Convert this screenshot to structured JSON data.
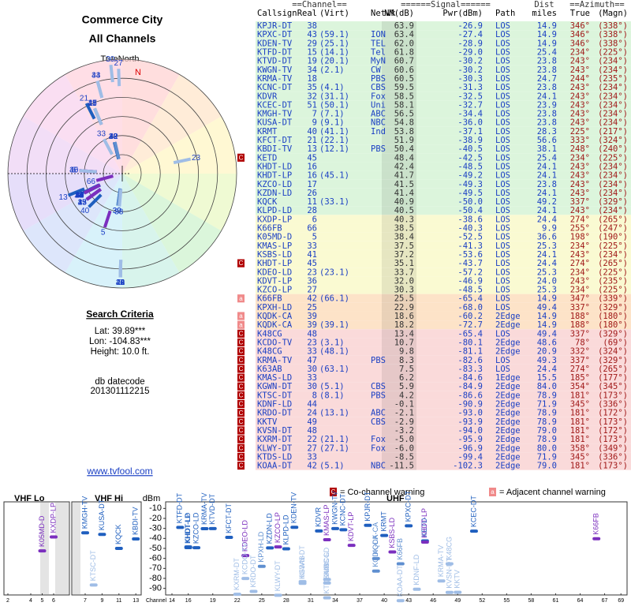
{
  "header": {
    "title": "Commerce City",
    "subtitle": "All Channels"
  },
  "polar": {
    "north_label": "TrueNorth",
    "n": "N"
  },
  "search": {
    "title": "Search Criteria",
    "lat": "Lat: 39.89***",
    "lon": "Lon: -104.83***",
    "height": "Height: 10.0 ft.",
    "datecode_label": "db datecode",
    "datecode": "201301112215",
    "site": "www.tvfool.com"
  },
  "legend": {
    "co_icon": "C",
    "co": "= Co-channel warning",
    "adj_icon": "a",
    "adj": "= Adjacent channel warning"
  },
  "table": {
    "group_headers": [
      "==Channel==",
      "======Signal======",
      "Dist",
      "==Azimuth=="
    ],
    "headers": [
      "Callsign",
      "Real",
      "(Virt)",
      "Netwk",
      "NM(dB)",
      "Pwr(dBm)",
      "Path",
      "miles",
      "True",
      "(Magn)"
    ],
    "rows": [
      {
        "cs": "KPJR-DT",
        "ch": "38",
        "nm": "63.9",
        "pwr": "-26.9",
        "path": "LOS",
        "dist": "14.9",
        "az": "346°",
        "mag": "(338°)",
        "bg": "#dcf5dc"
      },
      {
        "cs": "KPXC-DT",
        "ch": "43",
        "virt": "(59.1)",
        "net": "ION",
        "nm": "63.4",
        "pwr": "-27.4",
        "path": "LOS",
        "dist": "14.9",
        "az": "346°",
        "mag": "(338°)",
        "bg": "#dcf5dc"
      },
      {
        "cs": "KDEN-TV",
        "ch": "29",
        "virt": "(25.1)",
        "net": "TEL",
        "nm": "62.0",
        "pwr": "-28.9",
        "path": "LOS",
        "dist": "14.9",
        "az": "346°",
        "mag": "(338°)",
        "bg": "#dcf5dc"
      },
      {
        "cs": "KTFD-DT",
        "ch": "15",
        "virt": "(14.1)",
        "net": "Tel",
        "nm": "61.8",
        "pwr": "-29.0",
        "path": "LOS",
        "dist": "25.4",
        "az": "234°",
        "mag": "(225°)",
        "bg": "#dcf5dc"
      },
      {
        "cs": "KTVD-DT",
        "ch": "19",
        "virt": "(20.1)",
        "net": "MyN",
        "nm": "60.7",
        "pwr": "-30.2",
        "path": "LOS",
        "dist": "23.8",
        "az": "243°",
        "mag": "(234°)",
        "bg": "#dcf5dc"
      },
      {
        "cs": "KWGN-TV",
        "ch": "34",
        "virt": "(2.1)",
        "net": "CW",
        "nm": "60.6",
        "pwr": "-30.2",
        "path": "LOS",
        "dist": "23.8",
        "az": "243°",
        "mag": "(234°)",
        "bg": "#dcf5dc"
      },
      {
        "cs": "KRMA-TV",
        "ch": "18",
        "net": "PBS",
        "nm": "60.5",
        "pwr": "-30.3",
        "path": "LOS",
        "dist": "24.7",
        "az": "244°",
        "mag": "(235°)",
        "bg": "#dcf5dc"
      },
      {
        "cs": "KCNC-DT",
        "ch": "35",
        "virt": "(4.1)",
        "net": "CBS",
        "nm": "59.5",
        "pwr": "-31.3",
        "path": "LOS",
        "dist": "23.8",
        "az": "243°",
        "mag": "(234°)",
        "bg": "#dcf5dc"
      },
      {
        "cs": "KDVR",
        "ch": "32",
        "virt": "(31.1)",
        "net": "Fox",
        "nm": "58.5",
        "pwr": "-32.5",
        "path": "LOS",
        "dist": "24.1",
        "az": "243°",
        "mag": "(234°)",
        "bg": "#dcf5dc"
      },
      {
        "cs": "KCEC-DT",
        "ch": "51",
        "virt": "(50.1)",
        "net": "Uni",
        "nm": "58.1",
        "pwr": "-32.7",
        "path": "LOS",
        "dist": "23.9",
        "az": "243°",
        "mag": "(234°)",
        "bg": "#dcf5dc"
      },
      {
        "cs": "KMGH-TV",
        "ch": "7",
        "virt": "(7.1)",
        "net": "ABC",
        "nm": "56.5",
        "pwr": "-34.4",
        "path": "LOS",
        "dist": "23.8",
        "az": "243°",
        "mag": "(234°)",
        "bg": "#dcf5dc"
      },
      {
        "cs": "KUSA-DT",
        "ch": "9",
        "virt": "(9.1)",
        "net": "NBC",
        "nm": "54.8",
        "pwr": "-36.0",
        "path": "LOS",
        "dist": "23.8",
        "az": "243°",
        "mag": "(234°)",
        "bg": "#dcf5dc"
      },
      {
        "cs": "KRMT",
        "ch": "40",
        "virt": "(41.1)",
        "net": "Ind",
        "nm": "53.8",
        "pwr": "-37.1",
        "path": "LOS",
        "dist": "28.3",
        "az": "225°",
        "mag": "(217°)",
        "bg": "#dcf5dc"
      },
      {
        "cs": "KFCT-DT",
        "ch": "21",
        "virt": "(22.1)",
        "nm": "51.9",
        "pwr": "-38.9",
        "path": "LOS",
        "dist": "56.6",
        "az": "333°",
        "mag": "(324°)",
        "bg": "#dcf5dc"
      },
      {
        "cs": "KBDI-TV",
        "ch": "13",
        "virt": "(12.1)",
        "net": "PBS",
        "nm": "50.4",
        "pwr": "-40.5",
        "path": "LOS",
        "dist": "38.1",
        "az": "248°",
        "mag": "(240°)",
        "bg": "#dcf5dc"
      },
      {
        "warn": "C",
        "cs": "KETD",
        "ch": "45",
        "nm": "48.4",
        "pwr": "-42.5",
        "path": "LOS",
        "dist": "25.4",
        "az": "234°",
        "mag": "(225°)",
        "bg": "#dcf5dc"
      },
      {
        "cs": "KHDT-LD",
        "ch": "16",
        "nm": "42.4",
        "pwr": "-48.5",
        "path": "LOS",
        "dist": "24.1",
        "az": "243°",
        "mag": "(234°)",
        "bg": "#dcf5dc"
      },
      {
        "cs": "KHDT-LP",
        "ch": "16",
        "virt": "(45.1)",
        "nm": "41.7",
        "pwr": "-49.2",
        "path": "LOS",
        "dist": "24.1",
        "az": "243°",
        "mag": "(234°)",
        "bg": "#dcf5dc"
      },
      {
        "cs": "KZCO-LD",
        "ch": "17",
        "nm": "41.5",
        "pwr": "-49.3",
        "path": "LOS",
        "dist": "23.8",
        "az": "243°",
        "mag": "(234°)",
        "bg": "#dcf5dc"
      },
      {
        "cs": "KZDN-LD",
        "ch": "26",
        "nm": "41.4",
        "pwr": "-49.5",
        "path": "LOS",
        "dist": "24.1",
        "az": "243°",
        "mag": "(234°)",
        "bg": "#dcf5dc"
      },
      {
        "cs": "KQCK",
        "ch": "11",
        "virt": "(33.1)",
        "nm": "40.9",
        "pwr": "-50.0",
        "path": "LOS",
        "dist": "49.2",
        "az": "337°",
        "mag": "(329°)",
        "bg": "#dcf5dc"
      },
      {
        "cs": "KLPD-LD",
        "ch": "28",
        "nm": "40.5",
        "pwr": "-50.4",
        "path": "LOS",
        "dist": "24.1",
        "az": "243°",
        "mag": "(234°)",
        "bg": "#dcf5dc"
      },
      {
        "cs": "KXDP-LP",
        "ch": "6",
        "nm": "40.3",
        "pwr": "-38.6",
        "path": "LOS",
        "dist": "24.4",
        "az": "274°",
        "mag": "(265°)",
        "bg": "#fafad2"
      },
      {
        "cs": "K66FB",
        "ch": "66",
        "nm": "38.5",
        "pwr": "-40.3",
        "path": "LOS",
        "dist": "9.9",
        "az": "255°",
        "mag": "(247°)",
        "bg": "#fafad2"
      },
      {
        "cs": "K05MD-D",
        "ch": "5",
        "nm": "38.4",
        "pwr": "-52.5",
        "path": "LOS",
        "dist": "36.6",
        "az": "198°",
        "mag": "(190°)",
        "bg": "#fafad2"
      },
      {
        "cs": "KMAS-LP",
        "ch": "33",
        "nm": "37.5",
        "pwr": "-41.3",
        "path": "LOS",
        "dist": "25.3",
        "az": "234°",
        "mag": "(225°)",
        "bg": "#fafad2"
      },
      {
        "cs": "KSBS-LD",
        "ch": "41",
        "nm": "37.2",
        "pwr": "-53.6",
        "path": "LOS",
        "dist": "24.1",
        "az": "243°",
        "mag": "(234°)",
        "bg": "#fafad2"
      },
      {
        "warn": "C",
        "cs": "KHDT-LP",
        "ch": "45",
        "nm": "35.1",
        "pwr": "-43.7",
        "path": "LOS",
        "dist": "24.4",
        "az": "274°",
        "mag": "(265°)",
        "bg": "#fafad2"
      },
      {
        "cs": "KDEO-LD",
        "ch": "23",
        "virt": "(23.1)",
        "nm": "33.7",
        "pwr": "-57.2",
        "path": "LOS",
        "dist": "25.3",
        "az": "234°",
        "mag": "(225°)",
        "bg": "#fafad2"
      },
      {
        "cs": "KDVT-LP",
        "ch": "36",
        "nm": "32.0",
        "pwr": "-46.9",
        "path": "LOS",
        "dist": "24.0",
        "az": "243°",
        "mag": "(235°)",
        "bg": "#fafad2"
      },
      {
        "cs": "KZCO-LP",
        "ch": "27",
        "nm": "30.3",
        "pwr": "-48.5",
        "path": "LOS",
        "dist": "25.3",
        "az": "234°",
        "mag": "(225°)",
        "bg": "#fafad2"
      },
      {
        "warn": "a",
        "cs": "K66FB",
        "ch": "42",
        "virt": "(66.1)",
        "nm": "25.5",
        "pwr": "-65.4",
        "path": "LOS",
        "dist": "14.9",
        "az": "347°",
        "mag": "(339°)",
        "bg": "#fde3c8"
      },
      {
        "cs": "KPXH-LD",
        "ch": "25",
        "nm": "22.9",
        "pwr": "-68.0",
        "path": "LOS",
        "dist": "49.4",
        "az": "337°",
        "mag": "(329°)",
        "bg": "#fde3c8"
      },
      {
        "warn": "a",
        "cs": "KQDK-CA",
        "ch": "39",
        "nm": "18.6",
        "pwr": "-60.2",
        "path": "2Edge",
        "dist": "14.9",
        "az": "188°",
        "mag": "(180°)",
        "bg": "#fde3c8"
      },
      {
        "warn": "a",
        "cs": "KQDK-CA",
        "ch": "39",
        "virt": "(39.1)",
        "nm": "18.2",
        "pwr": "-72.7",
        "path": "2Edge",
        "dist": "14.9",
        "az": "188°",
        "mag": "(180°)",
        "bg": "#fde3c8"
      },
      {
        "warn": "C",
        "cs": "K48CG",
        "ch": "48",
        "nm": "13.4",
        "pwr": "-65.4",
        "path": "LOS",
        "dist": "49.4",
        "az": "337°",
        "mag": "(329°)",
        "bg": "#fadada"
      },
      {
        "warn": "C",
        "cs": "KCDO-TV",
        "ch": "23",
        "virt": "(3.1)",
        "nm": "10.7",
        "pwr": "-80.1",
        "path": "2Edge",
        "dist": "48.6",
        "az": "78°",
        "mag": "(69°)",
        "bg": "#fadada"
      },
      {
        "warn": "C",
        "cs": "K48CG",
        "ch": "33",
        "virt": "(48.1)",
        "nm": "9.8",
        "pwr": "-81.1",
        "path": "2Edge",
        "dist": "20.9",
        "az": "332°",
        "mag": "(324°)",
        "bg": "#fadada"
      },
      {
        "warn": "C",
        "cs": "KRMA-TV",
        "ch": "47",
        "net": "PBS",
        "nm": "8.3",
        "pwr": "-82.6",
        "path": "LOS",
        "dist": "49.3",
        "az": "337°",
        "mag": "(329°)",
        "bg": "#fadada"
      },
      {
        "warn": "C",
        "cs": "K63AB",
        "ch": "30",
        "virt": "(63.1)",
        "nm": "7.5",
        "pwr": "-83.3",
        "path": "LOS",
        "dist": "24.4",
        "az": "274°",
        "mag": "(265°)",
        "bg": "#fadada"
      },
      {
        "warn": "C",
        "cs": "KMAS-LD",
        "ch": "33",
        "nm": "6.2",
        "pwr": "-84.6",
        "path": "1Edge",
        "dist": "15.5",
        "az": "185°",
        "mag": "(177°)",
        "bg": "#fadada"
      },
      {
        "warn": "C",
        "cs": "KGWN-DT",
        "ch": "30",
        "virt": "(5.1)",
        "net": "CBS",
        "nm": "5.9",
        "pwr": "-84.9",
        "path": "2Edge",
        "dist": "84.0",
        "az": "354°",
        "mag": "(345°)",
        "bg": "#fadada"
      },
      {
        "warn": "C",
        "cs": "KTSC-DT",
        "ch": "8",
        "virt": "(8.1)",
        "net": "PBS",
        "nm": "4.2",
        "pwr": "-86.6",
        "path": "2Edge",
        "dist": "78.9",
        "az": "181°",
        "mag": "(173°)",
        "bg": "#fadada"
      },
      {
        "warn": "C",
        "cs": "KDNF-LD",
        "ch": "44",
        "nm": "-0.1",
        "pwr": "-90.9",
        "path": "2Edge",
        "dist": "71.9",
        "az": "345°",
        "mag": "(336°)",
        "bg": "#fadada"
      },
      {
        "warn": "C",
        "cs": "KRDO-DT",
        "ch": "24",
        "virt": "(13.1)",
        "net": "ABC",
        "nm": "-2.1",
        "pwr": "-93.0",
        "path": "2Edge",
        "dist": "78.9",
        "az": "181°",
        "mag": "(172°)",
        "bg": "#fadada"
      },
      {
        "warn": "C",
        "cs": "KKTV",
        "ch": "49",
        "net": "CBS",
        "nm": "-2.9",
        "pwr": "-93.9",
        "path": "2Edge",
        "dist": "78.9",
        "az": "181°",
        "mag": "(173°)",
        "bg": "#fadada"
      },
      {
        "warn": "C",
        "cs": "KVSN-DT",
        "ch": "48",
        "nm": "-3.2",
        "pwr": "-94.0",
        "path": "2Edge",
        "dist": "79.0",
        "az": "181°",
        "mag": "(172°)",
        "bg": "#fadada"
      },
      {
        "warn": "C",
        "cs": "KXRM-DT",
        "ch": "22",
        "virt": "(21.1)",
        "net": "Fox",
        "nm": "-5.0",
        "pwr": "-95.9",
        "path": "2Edge",
        "dist": "78.9",
        "az": "181°",
        "mag": "(173°)",
        "bg": "#fadada"
      },
      {
        "warn": "C",
        "cs": "KLWY-DT",
        "ch": "27",
        "virt": "(27.1)",
        "net": "Fox",
        "nm": "-6.0",
        "pwr": "-96.9",
        "path": "2Edge",
        "dist": "80.0",
        "az": "358°",
        "mag": "(349°)",
        "bg": "#fadada"
      },
      {
        "warn": "C",
        "cs": "KTDS-LD",
        "ch": "33",
        "nm": "-8.5",
        "pwr": "-99.4",
        "path": "2Edge",
        "dist": "71.9",
        "az": "345°",
        "mag": "(336°)",
        "bg": "#fadada"
      },
      {
        "warn": "C",
        "cs": "KOAA-DT",
        "ch": "42",
        "virt": "(5.1)",
        "net": "NBC",
        "nm": "-11.5",
        "pwr": "-102.3",
        "path": "2Edge",
        "dist": "79.0",
        "az": "181°",
        "mag": "(173°)",
        "bg": "#fadada"
      }
    ]
  },
  "spectrum": {
    "vhf_lo": "VHF Lo",
    "vhf_hi": "VHF Hi",
    "uhf": "UHF",
    "y_label": "dBm",
    "x_label": "Channel",
    "ylim": [
      -5,
      -95
    ],
    "yticks": [
      -10,
      -20,
      -30,
      -40,
      -50,
      -60,
      -70,
      -80,
      -90
    ],
    "xticks": [
      2,
      4,
      5,
      6,
      7,
      9,
      11,
      13,
      14,
      16,
      19,
      22,
      25,
      28,
      31,
      34,
      37,
      40,
      43,
      46,
      49,
      52,
      55,
      58,
      61,
      64,
      67,
      69
    ]
  }
}
